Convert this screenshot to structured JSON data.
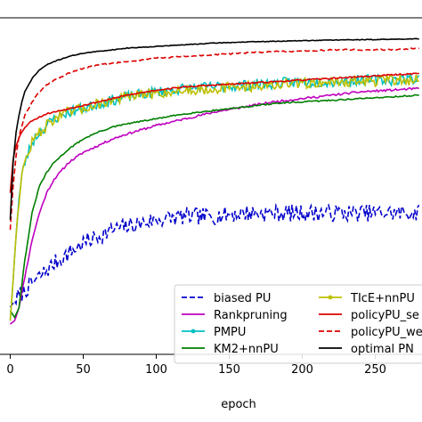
{
  "chart_data": {
    "type": "line",
    "xlabel": "epoch",
    "ylabel": "",
    "title": "",
    "xlim": [
      -7,
      282
    ],
    "ylim": [
      0,
      1
    ],
    "xticks": [
      0,
      50,
      100,
      150,
      200,
      250
    ],
    "grid": false,
    "legend_position": "lower-right",
    "legend_columns": 2,
    "series": [
      {
        "name": "biased PU",
        "color": "#0000cc",
        "style": "dashed",
        "marker": "none",
        "x": [
          0,
          5,
          10,
          20,
          30,
          40,
          50,
          60,
          70,
          80,
          100,
          120,
          140,
          160,
          180,
          200,
          220,
          240,
          260,
          280
        ],
        "y": [
          0.14,
          0.17,
          0.19,
          0.23,
          0.27,
          0.3,
          0.33,
          0.35,
          0.37,
          0.38,
          0.4,
          0.41,
          0.41,
          0.42,
          0.42,
          0.42,
          0.42,
          0.42,
          0.42,
          0.42
        ],
        "noise": 0.025,
        "seed": 7
      },
      {
        "name": "Rankpruning",
        "color": "#bf00bf",
        "style": "solid",
        "marker": "none",
        "x": [
          0,
          3,
          6,
          10,
          15,
          20,
          25,
          30,
          40,
          50,
          60,
          70,
          80,
          100,
          120,
          140,
          160,
          180,
          200,
          220,
          240,
          260,
          280
        ],
        "y": [
          0.09,
          0.1,
          0.14,
          0.23,
          0.34,
          0.42,
          0.48,
          0.52,
          0.57,
          0.6,
          0.62,
          0.64,
          0.655,
          0.68,
          0.7,
          0.72,
          0.735,
          0.75,
          0.76,
          0.77,
          0.78,
          0.785,
          0.79
        ],
        "noise": 0.003,
        "seed": 11
      },
      {
        "name": "PMPU",
        "color": "#00bfbf",
        "style": "solid",
        "marker": "dot",
        "x": [
          0,
          2,
          4,
          6,
          8,
          10,
          15,
          20,
          25,
          30,
          40,
          50,
          60,
          70,
          80,
          100,
          120,
          140,
          160,
          180,
          200,
          220,
          240,
          260,
          280
        ],
        "y": [
          0.1,
          0.22,
          0.36,
          0.46,
          0.53,
          0.57,
          0.63,
          0.66,
          0.68,
          0.7,
          0.72,
          0.73,
          0.745,
          0.755,
          0.765,
          0.78,
          0.79,
          0.795,
          0.8,
          0.805,
          0.81,
          0.81,
          0.815,
          0.815,
          0.82
        ],
        "noise": 0.016,
        "seed": 23
      },
      {
        "name": "KM2+nnPU",
        "color": "#007f00",
        "style": "solid",
        "marker": "none",
        "x": [
          0,
          3,
          6,
          10,
          15,
          20,
          25,
          30,
          40,
          50,
          60,
          70,
          80,
          100,
          120,
          140,
          160,
          180,
          200,
          220,
          240,
          260,
          280
        ],
        "y": [
          0.13,
          0.11,
          0.14,
          0.28,
          0.42,
          0.5,
          0.54,
          0.57,
          0.61,
          0.64,
          0.66,
          0.675,
          0.685,
          0.7,
          0.715,
          0.725,
          0.735,
          0.745,
          0.75,
          0.755,
          0.76,
          0.765,
          0.77
        ],
        "noise": 0.002,
        "seed": 31
      },
      {
        "name": "TIcE+nnPU",
        "color": "#bfbf00",
        "style": "solid",
        "marker": "dot",
        "x": [
          0,
          2,
          4,
          6,
          8,
          10,
          15,
          20,
          25,
          30,
          40,
          50,
          60,
          70,
          80,
          100,
          120,
          140,
          160,
          180,
          200,
          220,
          240,
          260,
          280
        ],
        "y": [
          0.1,
          0.22,
          0.36,
          0.46,
          0.53,
          0.57,
          0.63,
          0.66,
          0.68,
          0.7,
          0.72,
          0.73,
          0.745,
          0.755,
          0.765,
          0.775,
          0.785,
          0.79,
          0.795,
          0.8,
          0.805,
          0.81,
          0.81,
          0.815,
          0.815
        ],
        "noise": 0.016,
        "seed": 47
      },
      {
        "name": "policyPU_se",
        "color": "#dd0000",
        "style": "solid",
        "marker": "none",
        "x": [
          0,
          2,
          4,
          6,
          8,
          10,
          15,
          20,
          25,
          30,
          40,
          50,
          60,
          70,
          80,
          100,
          120,
          140,
          160,
          180,
          200,
          220,
          240,
          260,
          280
        ],
        "y": [
          0.48,
          0.58,
          0.62,
          0.645,
          0.66,
          0.675,
          0.695,
          0.705,
          0.715,
          0.72,
          0.73,
          0.74,
          0.75,
          0.76,
          0.77,
          0.785,
          0.795,
          0.8,
          0.805,
          0.81,
          0.815,
          0.82,
          0.825,
          0.83,
          0.835
        ],
        "noise": 0.002,
        "seed": 53
      },
      {
        "name": "policyPU_we",
        "color": "#dd0000",
        "style": "dashed",
        "marker": "none",
        "x": [
          0,
          2,
          4,
          6,
          8,
          10,
          15,
          20,
          25,
          30,
          40,
          50,
          60,
          70,
          80,
          100,
          120,
          140,
          160,
          180,
          200,
          220,
          240,
          260,
          280
        ],
        "y": [
          0.37,
          0.5,
          0.59,
          0.645,
          0.68,
          0.71,
          0.75,
          0.78,
          0.8,
          0.815,
          0.835,
          0.85,
          0.86,
          0.865,
          0.87,
          0.88,
          0.885,
          0.89,
          0.895,
          0.9,
          0.9,
          0.905,
          0.905,
          0.905,
          0.91
        ],
        "noise": 0.002,
        "seed": 61
      },
      {
        "name": "optimal PN",
        "color": "#000000",
        "style": "solid",
        "marker": "none",
        "x": [
          0,
          2,
          4,
          6,
          8,
          10,
          15,
          20,
          25,
          30,
          40,
          50,
          60,
          70,
          80,
          100,
          120,
          140,
          160,
          180,
          200,
          220,
          240,
          260,
          280
        ],
        "y": [
          0.4,
          0.57,
          0.66,
          0.71,
          0.75,
          0.78,
          0.82,
          0.845,
          0.86,
          0.87,
          0.885,
          0.895,
          0.9,
          0.905,
          0.91,
          0.915,
          0.92,
          0.925,
          0.928,
          0.93,
          0.932,
          0.934,
          0.935,
          0.936,
          0.938
        ],
        "noise": 0.001,
        "seed": 71
      }
    ]
  }
}
